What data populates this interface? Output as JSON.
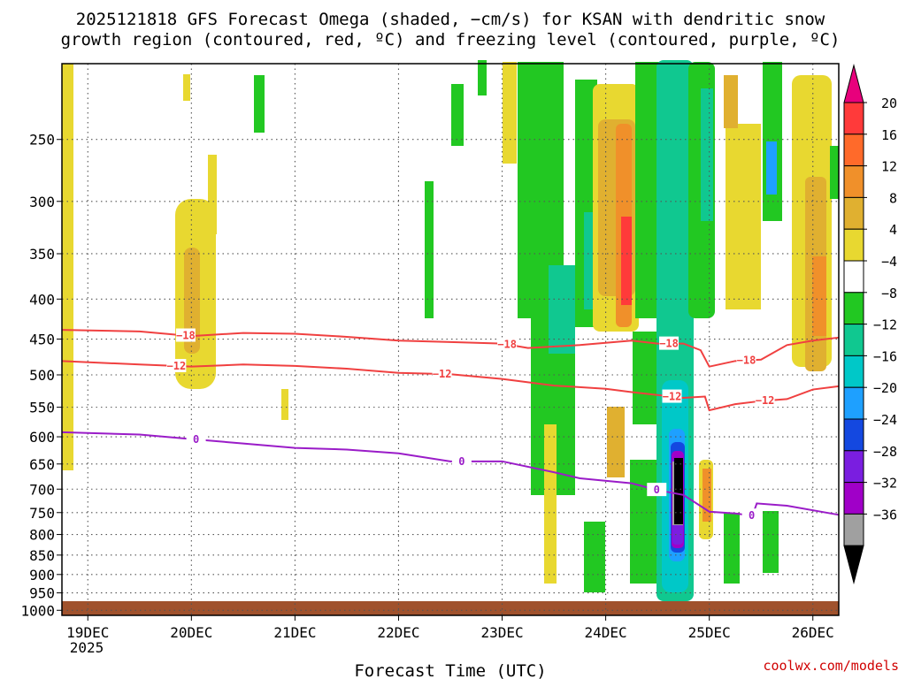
{
  "title": {
    "line1": "2025121818 GFS Forecast Omega (shaded, −cm/s) for KSAN with dendritic snow",
    "line2": "growth region (contoured, red, ºC) and freezing level (contoured, purple, ºC)"
  },
  "credit": "coolwx.com/models",
  "chart_data": {
    "type": "heatmap",
    "xlabel": "Forecast Time (UTC)",
    "x_ticks": [
      "19DEC",
      "20DEC",
      "21DEC",
      "22DEC",
      "23DEC",
      "24DEC",
      "25DEC",
      "26DEC"
    ],
    "x_year": "2025",
    "xlim": [
      "2025-12-18T18:00",
      "2025-12-26T06:00"
    ],
    "ylabel": "",
    "y_ticks": [
      250,
      300,
      350,
      400,
      450,
      500,
      550,
      600,
      650,
      700,
      750,
      800,
      850,
      900,
      950,
      1000
    ],
    "ylim": [
      1015,
      200
    ],
    "colorbar": {
      "levels": [
        "20",
        "16",
        "12",
        "8",
        "4",
        "−4",
        "−8",
        "−12",
        "−16",
        "−20",
        "−24",
        "−28",
        "−32",
        "−36"
      ],
      "colors": [
        "#e8007c",
        "#ff3a3a",
        "#ff6a2a",
        "#f0902a",
        "#e0b030",
        "#e8d830",
        "#ffffff",
        "#22c822",
        "#10c890",
        "#00c8c8",
        "#1ea0ff",
        "#1448e0",
        "#7a1ee0",
        "#a000c8",
        "#a0a0a0",
        "#000000"
      ]
    },
    "series": [
      {
        "name": "−18",
        "color": "#f04040",
        "points": [
          [
            "2025-12-18T18:00",
            438
          ],
          [
            "2025-12-19T12:00",
            440
          ],
          [
            "2025-12-20T00:00",
            446
          ],
          [
            "2025-12-20T12:00",
            442
          ],
          [
            "2025-12-21T00:00",
            443
          ],
          [
            "2025-12-21T12:00",
            447
          ],
          [
            "2025-12-22T00:00",
            452
          ],
          [
            "2025-12-22T12:00",
            454
          ],
          [
            "2025-12-23T00:00",
            456
          ],
          [
            "2025-12-23T06:00",
            462
          ],
          [
            "2025-12-23T18:00",
            458
          ],
          [
            "2025-12-24T00:00",
            455
          ],
          [
            "2025-12-24T06:00",
            452
          ],
          [
            "2025-12-24T12:00",
            456
          ],
          [
            "2025-12-24T18:00",
            456
          ],
          [
            "2025-12-24T22:00",
            465
          ],
          [
            "2025-12-25T00:00",
            488
          ],
          [
            "2025-12-25T06:00",
            480
          ],
          [
            "2025-12-25T12:00",
            478
          ],
          [
            "2025-12-25T18:00",
            458
          ],
          [
            "2025-12-26T00:00",
            452
          ],
          [
            "2025-12-26T06:00",
            448
          ]
        ]
      },
      {
        "name": "−12",
        "color": "#f04040",
        "points": [
          [
            "2025-12-18T18:00",
            480
          ],
          [
            "2025-12-19T12:00",
            485
          ],
          [
            "2025-12-20T00:00",
            488
          ],
          [
            "2025-12-20T12:00",
            485
          ],
          [
            "2025-12-21T00:00",
            487
          ],
          [
            "2025-12-21T12:00",
            491
          ],
          [
            "2025-12-22T00:00",
            497
          ],
          [
            "2025-12-22T12:00",
            499
          ],
          [
            "2025-12-23T00:00",
            506
          ],
          [
            "2025-12-23T12:00",
            516
          ],
          [
            "2025-12-24T00:00",
            521
          ],
          [
            "2025-12-24T06:00",
            526
          ],
          [
            "2025-12-24T18:00",
            535
          ],
          [
            "2025-12-24T23:00",
            533
          ],
          [
            "2025-12-25T00:00",
            555
          ],
          [
            "2025-12-25T06:00",
            545
          ],
          [
            "2025-12-25T12:00",
            540
          ],
          [
            "2025-12-25T18:00",
            537
          ],
          [
            "2025-12-26T00:00",
            522
          ],
          [
            "2025-12-26T06:00",
            517
          ]
        ]
      },
      {
        "name": "0",
        "color": "#9a1cc8",
        "points": [
          [
            "2025-12-18T18:00",
            592
          ],
          [
            "2025-12-19T12:00",
            596
          ],
          [
            "2025-12-20T00:00",
            604
          ],
          [
            "2025-12-20T12:00",
            612
          ],
          [
            "2025-12-21T00:00",
            620
          ],
          [
            "2025-12-21T12:00",
            623
          ],
          [
            "2025-12-22T00:00",
            630
          ],
          [
            "2025-12-22T12:00",
            645
          ],
          [
            "2025-12-23T00:00",
            645
          ],
          [
            "2025-12-23T12:00",
            666
          ],
          [
            "2025-12-23T18:00",
            678
          ],
          [
            "2025-12-24T06:00",
            688
          ],
          [
            "2025-12-24T12:00",
            702
          ],
          [
            "2025-12-24T18:00",
            712
          ],
          [
            "2025-12-25T00:00",
            748
          ],
          [
            "2025-12-25T06:00",
            752
          ],
          [
            "2025-12-25T10:00",
            757
          ],
          [
            "2025-12-25T11:00",
            730
          ],
          [
            "2025-12-25T18:00",
            735
          ],
          [
            "2025-12-26T06:00",
            755
          ]
        ]
      }
    ]
  }
}
